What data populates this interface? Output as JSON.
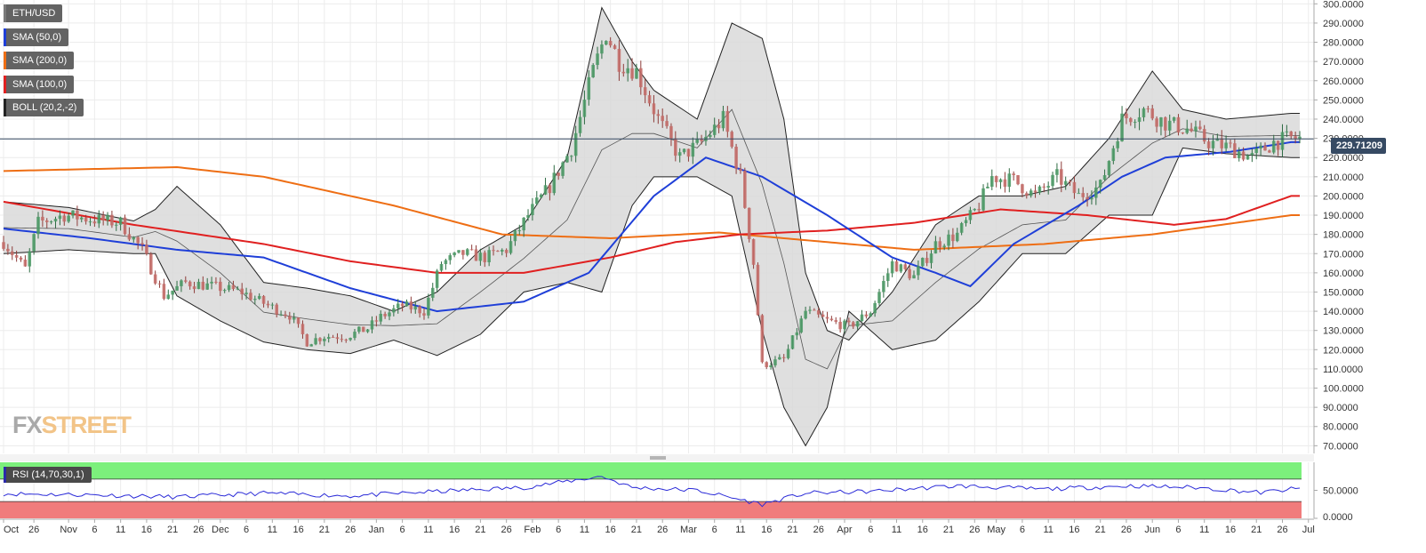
{
  "chart_data": [
    {
      "type": "candlestick",
      "title": "ETH/USD",
      "legend": [
        {
          "name": "ETH/USD",
          "color": "#7a7a7a"
        },
        {
          "name": "SMA (50,0)",
          "color": "#1f3fd8"
        },
        {
          "name": "SMA (200,0)",
          "color": "#ee6e14"
        },
        {
          "name": "SMA (100,0)",
          "color": "#e02020"
        },
        {
          "name": "BOLL (20,2,-2)",
          "color": "#222222"
        }
      ],
      "last_price": "229.71209",
      "ylim": [
        66,
        302
      ],
      "y_ticks": [
        "70.0000",
        "80.0000",
        "90.0000",
        "100.0000",
        "110.0000",
        "120.0000",
        "130.0000",
        "140.0000",
        "150.0000",
        "160.0000",
        "170.0000",
        "180.0000",
        "190.0000",
        "200.0000",
        "210.0000",
        "220.0000",
        "230.0000",
        "240.0000",
        "250.0000",
        "260.0000",
        "270.0000",
        "280.0000",
        "290.0000",
        "300.0000"
      ],
      "x_ticks": [
        "Oct",
        "26",
        "Nov",
        "6",
        "11",
        "16",
        "21",
        "26",
        "Dec",
        "6",
        "11",
        "16",
        "21",
        "26",
        "Jan",
        "6",
        "11",
        "16",
        "21",
        "26",
        "Feb",
        "6",
        "11",
        "16",
        "21",
        "26",
        "Mar",
        "6",
        "11",
        "16",
        "21",
        "26",
        "Apr",
        "6",
        "11",
        "16",
        "21",
        "26",
        "May",
        "6",
        "11",
        "16",
        "21",
        "26",
        "Jun",
        "6",
        "11",
        "16",
        "21",
        "26",
        "Jul"
      ],
      "price_anchors": [
        [
          0,
          176
        ],
        [
          5,
          162
        ],
        [
          8,
          186
        ],
        [
          14,
          190
        ],
        [
          20,
          188
        ],
        [
          27,
          186
        ],
        [
          32,
          172
        ],
        [
          37,
          148
        ],
        [
          42,
          155
        ],
        [
          48,
          153
        ],
        [
          55,
          150
        ],
        [
          61,
          143
        ],
        [
          66,
          138
        ],
        [
          70,
          124
        ],
        [
          74,
          127
        ],
        [
          79,
          127
        ],
        [
          84,
          131
        ],
        [
          87,
          137
        ],
        [
          92,
          143
        ],
        [
          97,
          140
        ],
        [
          101,
          165
        ],
        [
          106,
          170
        ],
        [
          111,
          168
        ],
        [
          116,
          172
        ],
        [
          121,
          190
        ],
        [
          126,
          205
        ],
        [
          131,
          225
        ],
        [
          136,
          265
        ],
        [
          139,
          285
        ],
        [
          142,
          270
        ],
        [
          146,
          265
        ],
        [
          151,
          240
        ],
        [
          156,
          220
        ],
        [
          161,
          228
        ],
        [
          166,
          240
        ],
        [
          170,
          210
        ],
        [
          173,
          165
        ],
        [
          175,
          112
        ],
        [
          180,
          115
        ],
        [
          185,
          140
        ],
        [
          190,
          135
        ],
        [
          195,
          132
        ],
        [
          200,
          140
        ],
        [
          205,
          165
        ],
        [
          210,
          158
        ],
        [
          215,
          175
        ],
        [
          220,
          180
        ],
        [
          225,
          195
        ],
        [
          228,
          210
        ],
        [
          233,
          208
        ],
        [
          238,
          200
        ],
        [
          243,
          210
        ],
        [
          248,
          200
        ],
        [
          253,
          205
        ],
        [
          258,
          240
        ],
        [
          263,
          245
        ],
        [
          268,
          238
        ],
        [
          273,
          235
        ],
        [
          278,
          228
        ],
        [
          283,
          225
        ],
        [
          288,
          220
        ],
        [
          293,
          228
        ],
        [
          297,
          230
        ]
      ],
      "sma50_anchors": [
        [
          0,
          183
        ],
        [
          20,
          178
        ],
        [
          40,
          172
        ],
        [
          60,
          168
        ],
        [
          80,
          152
        ],
        [
          100,
          140
        ],
        [
          120,
          145
        ],
        [
          135,
          160
        ],
        [
          150,
          200
        ],
        [
          162,
          220
        ],
        [
          175,
          210
        ],
        [
          190,
          190
        ],
        [
          205,
          168
        ],
        [
          215,
          160
        ],
        [
          223,
          153
        ],
        [
          233,
          175
        ],
        [
          248,
          195
        ],
        [
          258,
          210
        ],
        [
          268,
          220
        ],
        [
          283,
          223
        ],
        [
          297,
          228
        ]
      ],
      "sma100_anchors": [
        [
          0,
          197
        ],
        [
          30,
          185
        ],
        [
          60,
          175
        ],
        [
          80,
          166
        ],
        [
          100,
          160
        ],
        [
          120,
          160
        ],
        [
          140,
          168
        ],
        [
          155,
          176
        ],
        [
          170,
          180
        ],
        [
          190,
          182
        ],
        [
          210,
          186
        ],
        [
          230,
          193
        ],
        [
          250,
          190
        ],
        [
          270,
          185
        ],
        [
          282,
          188
        ],
        [
          297,
          200
        ]
      ],
      "sma200_anchors": [
        [
          0,
          213
        ],
        [
          40,
          215
        ],
        [
          60,
          210
        ],
        [
          90,
          195
        ],
        [
          115,
          180
        ],
        [
          140,
          178
        ],
        [
          165,
          181
        ],
        [
          190,
          176
        ],
        [
          210,
          172
        ],
        [
          240,
          175
        ],
        [
          265,
          180
        ],
        [
          297,
          190
        ]
      ],
      "boll_anchors": [
        [
          0,
          197,
          170
        ],
        [
          15,
          194,
          172
        ],
        [
          30,
          187,
          170
        ],
        [
          35,
          193,
          170
        ],
        [
          40,
          205,
          148
        ],
        [
          50,
          185,
          135
        ],
        [
          60,
          155,
          124
        ],
        [
          70,
          152,
          120
        ],
        [
          80,
          148,
          118
        ],
        [
          90,
          140,
          125
        ],
        [
          100,
          150,
          117
        ],
        [
          110,
          172,
          128
        ],
        [
          120,
          185,
          150
        ],
        [
          130,
          220,
          155
        ],
        [
          138,
          298,
          150
        ],
        [
          145,
          270,
          195
        ],
        [
          150,
          255,
          210
        ],
        [
          160,
          240,
          210
        ],
        [
          168,
          290,
          200
        ],
        [
          175,
          282,
          130
        ],
        [
          180,
          240,
          90
        ],
        [
          185,
          160,
          70
        ],
        [
          190,
          130,
          90
        ],
        [
          195,
          125,
          140
        ],
        [
          205,
          150,
          120
        ],
        [
          215,
          185,
          125
        ],
        [
          225,
          200,
          145
        ],
        [
          235,
          200,
          170
        ],
        [
          245,
          205,
          170
        ],
        [
          255,
          230,
          190
        ],
        [
          265,
          265,
          190
        ],
        [
          272,
          245,
          225
        ],
        [
          282,
          240,
          222
        ],
        [
          297,
          243,
          220
        ]
      ],
      "x_ticks_pos": [
        0,
        7,
        15,
        21,
        27,
        33,
        39,
        45,
        50,
        56,
        62,
        68,
        74,
        80,
        86,
        92,
        98,
        104,
        110,
        116,
        122,
        128,
        134,
        140,
        146,
        152,
        158,
        164,
        170,
        176,
        182,
        188,
        194,
        200,
        206,
        212,
        218,
        224,
        229,
        235,
        241,
        247,
        253,
        259,
        265,
        271,
        277,
        283,
        289,
        295,
        301
      ]
    },
    {
      "type": "line",
      "title": "RSI (14,70,30,1)",
      "ylim": [
        0,
        100
      ],
      "y_ticks": [
        "50.0000",
        "0.0000"
      ],
      "overbought": 70,
      "oversold": 30,
      "rsi_anchors": [
        [
          0,
          44
        ],
        [
          20,
          42
        ],
        [
          40,
          38
        ],
        [
          60,
          45
        ],
        [
          80,
          40
        ],
        [
          100,
          48
        ],
        [
          120,
          55
        ],
        [
          138,
          75
        ],
        [
          145,
          55
        ],
        [
          160,
          50
        ],
        [
          175,
          25
        ],
        [
          185,
          45
        ],
        [
          200,
          48
        ],
        [
          220,
          58
        ],
        [
          240,
          52
        ],
        [
          260,
          58
        ],
        [
          275,
          55
        ],
        [
          290,
          46
        ],
        [
          297,
          52
        ]
      ]
    }
  ]
}
